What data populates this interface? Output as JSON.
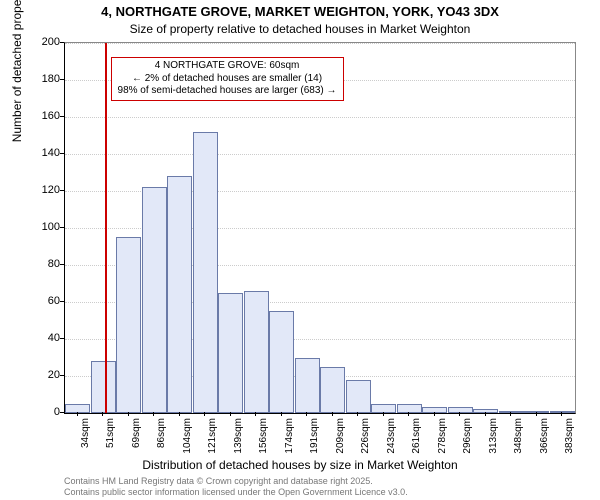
{
  "chart": {
    "type": "histogram",
    "title_main": "4, NORTHGATE GROVE, MARKET WEIGHTON, YORK, YO43 3DX",
    "title_sub": "Size of property relative to detached houses in Market Weighton",
    "xlabel": "Distribution of detached houses by size in Market Weighton",
    "ylabel": "Number of detached properties",
    "background_color": "#ffffff",
    "grid_color": "#cccccc",
    "bar_fill": "#e2e8f8",
    "bar_border": "#6a7aa8",
    "marker_color": "#cc0000",
    "ylim": [
      0,
      200
    ],
    "ytick_step": 20,
    "yticks": [
      0,
      20,
      40,
      60,
      80,
      100,
      120,
      140,
      160,
      180,
      200
    ],
    "xtick_labels": [
      "34sqm",
      "51sqm",
      "69sqm",
      "86sqm",
      "104sqm",
      "121sqm",
      "139sqm",
      "156sqm",
      "174sqm",
      "191sqm",
      "209sqm",
      "226sqm",
      "243sqm",
      "261sqm",
      "278sqm",
      "296sqm",
      "313sqm",
      "348sqm",
      "366sqm",
      "383sqm"
    ],
    "bars": [
      5,
      28,
      95,
      122,
      128,
      152,
      65,
      66,
      55,
      30,
      25,
      18,
      5,
      5,
      3,
      3,
      2,
      1,
      1,
      1
    ],
    "marker_index": 1.55,
    "annotation": {
      "line1": "4 NORTHGATE GROVE: 60sqm",
      "line2": "← 2% of detached houses are smaller (14)",
      "line3": "98% of semi-detached houses are larger (683) →"
    },
    "attribution": {
      "line1": "Contains HM Land Registry data © Crown copyright and database right 2025.",
      "line2": "Contains public sector information licensed under the Open Government Licence v3.0."
    },
    "title_fontsize": 13,
    "subtitle_fontsize": 12,
    "axis_label_fontsize": 12,
    "tick_fontsize": 11,
    "xtick_fontsize": 10,
    "annotation_fontsize": 10,
    "attribution_fontsize": 9
  }
}
